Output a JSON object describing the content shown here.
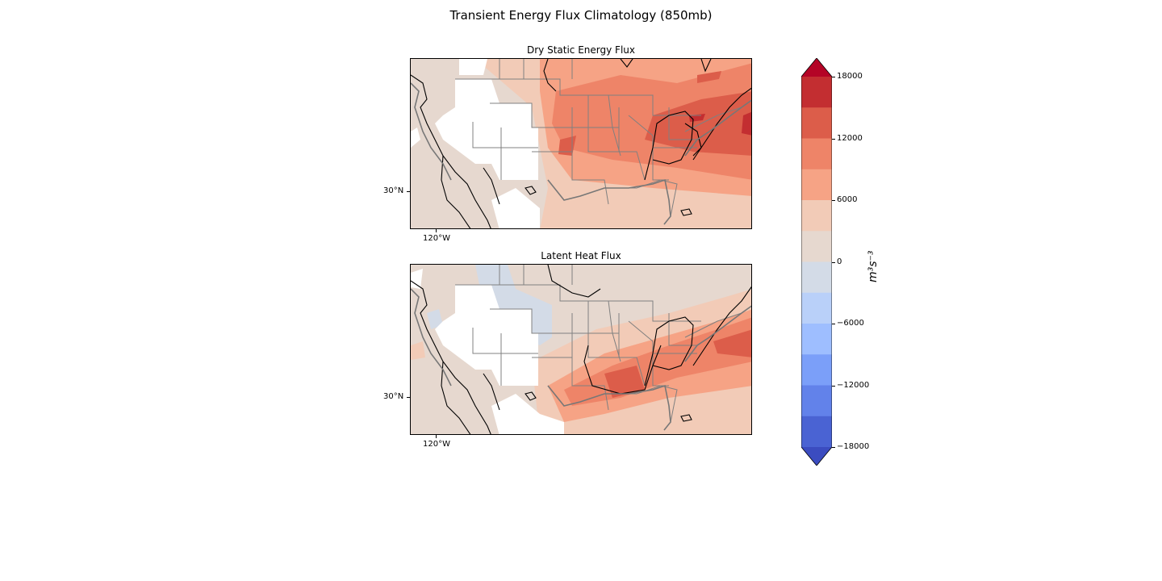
{
  "figure": {
    "title": "Transient Energy Flux Climatology (850mb)"
  },
  "panels": [
    {
      "title": "Dry Static Energy Flux",
      "lat_tick": "30°N",
      "lon_tick": "120°W"
    },
    {
      "title": "Latent Heat Flux",
      "lat_tick": "30°N",
      "lon_tick": "120°W"
    }
  ],
  "colorbar": {
    "levels": [
      -18000,
      -15000,
      -12000,
      -9000,
      -6000,
      -3000,
      0,
      3000,
      6000,
      9000,
      12000,
      15000,
      18000
    ],
    "tick_labels": [
      "18000",
      "12000",
      "6000",
      "0",
      "−6000",
      "−12000",
      "−18000"
    ],
    "unit_label": "m³s⁻³",
    "extend": "both",
    "colors": [
      "#3b4cc0",
      "#4a63d3",
      "#6282ea",
      "#7b9ff9",
      "#9ebeff",
      "#b9d0f9",
      "#d3dbe7",
      "#e6d8cf",
      "#f2cbb7",
      "#f6a385",
      "#ee8468",
      "#dc5d4a",
      "#c32e31",
      "#b40426"
    ]
  }
}
